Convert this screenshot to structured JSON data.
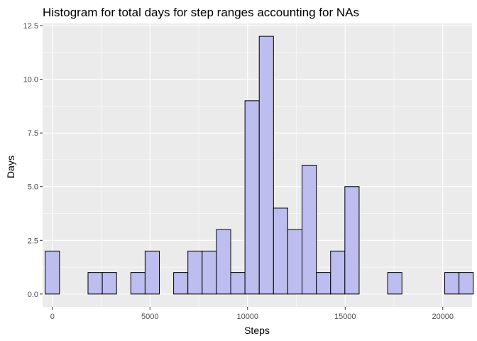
{
  "chart_data": {
    "type": "bar",
    "title": "Histogram for total days for step ranges accounting for NAs",
    "xlabel": "Steps",
    "ylabel": "Days",
    "xlim": [
      -500,
      21500
    ],
    "ylim": [
      -0.6,
      12.6
    ],
    "x_ticks": [
      0,
      5000,
      10000,
      15000,
      20000
    ],
    "x_tick_labels": [
      "0",
      "5000",
      "10000",
      "15000",
      "20000"
    ],
    "y_ticks": [
      0,
      2.5,
      5,
      7.5,
      10,
      12.5
    ],
    "y_tick_labels": [
      "0.0",
      "2.5",
      "5.0",
      "7.5",
      "10.0",
      "12.5"
    ],
    "grid": true,
    "bin_width": 731,
    "bins": [
      {
        "start": -366,
        "count": 2
      },
      {
        "start": 365,
        "count": 0
      },
      {
        "start": 1096,
        "count": 0
      },
      {
        "start": 1827,
        "count": 1
      },
      {
        "start": 2558,
        "count": 1
      },
      {
        "start": 3289,
        "count": 0
      },
      {
        "start": 4020,
        "count": 1
      },
      {
        "start": 4751,
        "count": 2
      },
      {
        "start": 5482,
        "count": 0
      },
      {
        "start": 6213,
        "count": 1
      },
      {
        "start": 6944,
        "count": 2
      },
      {
        "start": 7675,
        "count": 2
      },
      {
        "start": 8406,
        "count": 3
      },
      {
        "start": 9137,
        "count": 1
      },
      {
        "start": 9868,
        "count": 9
      },
      {
        "start": 10599,
        "count": 12
      },
      {
        "start": 11330,
        "count": 4
      },
      {
        "start": 12061,
        "count": 3
      },
      {
        "start": 12792,
        "count": 6
      },
      {
        "start": 13523,
        "count": 1
      },
      {
        "start": 14254,
        "count": 2
      },
      {
        "start": 14985,
        "count": 5
      },
      {
        "start": 15716,
        "count": 0
      },
      {
        "start": 16447,
        "count": 0
      },
      {
        "start": 17178,
        "count": 1
      },
      {
        "start": 17909,
        "count": 0
      },
      {
        "start": 18640,
        "count": 0
      },
      {
        "start": 19371,
        "count": 0
      },
      {
        "start": 20102,
        "count": 1
      },
      {
        "start": 20833,
        "count": 1
      }
    ],
    "fill_color": "#bdbdf0",
    "stroke_color": "#000000",
    "panel_background": "#ebebeb"
  }
}
